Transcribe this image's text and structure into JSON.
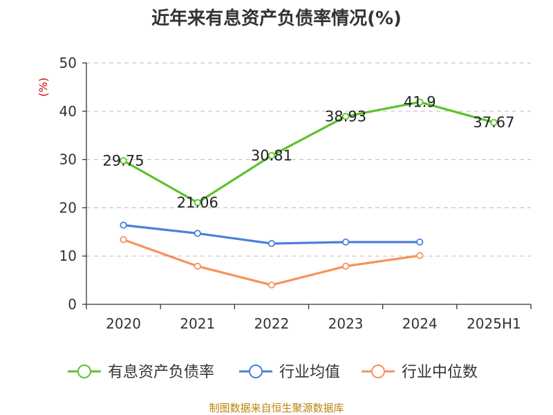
{
  "title": "近年来有息资产负债率情况(%)",
  "source": "制图数据来自恒生聚源数据库",
  "chart_data": {
    "type": "line",
    "ylabel": "(%)",
    "xlabel": "",
    "ylim": [
      0,
      50
    ],
    "yticks": [
      0,
      10,
      20,
      30,
      40,
      50
    ],
    "grid": true,
    "legend_position": "bottom",
    "categories": [
      "2020",
      "2021",
      "2022",
      "2023",
      "2024",
      "2025H1"
    ],
    "series": [
      {
        "name": "有息资产负债率",
        "color": "#5cc22c",
        "values": [
          29.75,
          21.06,
          30.81,
          38.93,
          41.9,
          37.67
        ],
        "labels": [
          "29.75",
          "21.06",
          "30.81",
          "38.93",
          "41.9",
          "37.67"
        ],
        "show_labels": true
      },
      {
        "name": "行业均值",
        "color": "#4a7fdc",
        "values": [
          16.4,
          14.7,
          12.6,
          12.9,
          12.9,
          null
        ],
        "show_labels": false
      },
      {
        "name": "行业中位数",
        "color": "#f79259",
        "values": [
          13.4,
          7.9,
          4.0,
          7.9,
          10.1,
          null
        ],
        "show_labels": false
      }
    ]
  }
}
